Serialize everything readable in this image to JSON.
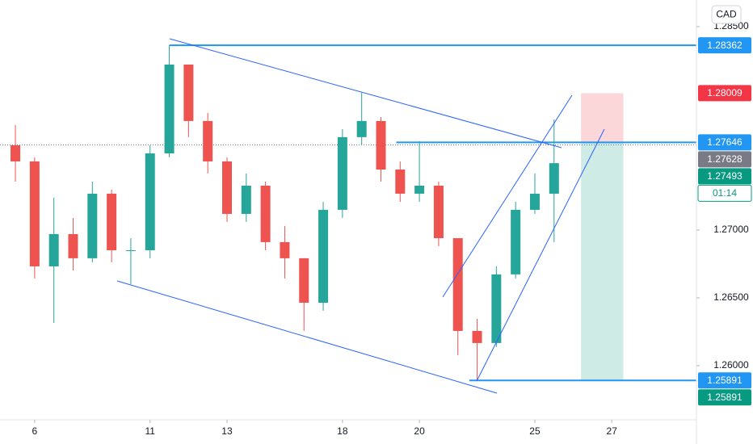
{
  "chart_data": {
    "type": "candlestick",
    "currency": "CAD",
    "x": [
      -0.5,
      0,
      0.5,
      1,
      1.5,
      2,
      2.5,
      3,
      3.5,
      4,
      4.5,
      5,
      5.5,
      6,
      6.5,
      7,
      7.5,
      8,
      8.5,
      9,
      9.5,
      10,
      10.5,
      11,
      11.5,
      12,
      12.5,
      13,
      13.5
    ],
    "open": [
      1.27625,
      1.27506,
      1.26732,
      1.2697,
      1.26792,
      1.27268,
      1.26851,
      1.26851,
      1.27565,
      1.2822,
      1.27804,
      1.27506,
      1.27119,
      1.27327,
      1.26911,
      1.26792,
      1.26464,
      1.27149,
      1.27685,
      1.27804,
      1.27446,
      1.27268,
      1.27327,
      1.2694,
      1.26256,
      1.26167,
      1.26673,
      1.27149,
      1.27268
    ],
    "high": [
      1.27774,
      1.27536,
      1.27238,
      1.27089,
      1.27357,
      1.27298,
      1.2694,
      1.27625,
      1.28362,
      1.2822,
      1.27863,
      1.27536,
      1.27417,
      1.27357,
      1.2703,
      1.26792,
      1.27208,
      1.27744,
      1.28012,
      1.27833,
      1.27506,
      1.27655,
      1.27357,
      1.2694,
      1.26345,
      1.26732,
      1.27208,
      1.27417,
      1.27815
    ],
    "low": [
      1.27357,
      1.26643,
      1.26315,
      1.26702,
      1.26762,
      1.26762,
      1.26601,
      1.26792,
      1.27536,
      1.27685,
      1.27417,
      1.2706,
      1.2706,
      1.26851,
      1.26643,
      1.26256,
      1.26405,
      1.27089,
      1.27625,
      1.27357,
      1.27208,
      1.27208,
      1.26881,
      1.26077,
      1.25891,
      1.26137,
      1.26643,
      1.27119,
      1.26911
    ],
    "close": [
      1.27506,
      1.26732,
      1.2697,
      1.26792,
      1.27268,
      1.26851,
      1.26851,
      1.27565,
      1.2822,
      1.27804,
      1.27506,
      1.27119,
      1.27327,
      1.26911,
      1.26792,
      1.26464,
      1.27149,
      1.27685,
      1.27804,
      1.27446,
      1.27268,
      1.27327,
      1.2694,
      1.26256,
      1.26167,
      1.26673,
      1.27149,
      1.27268,
      1.27493
    ],
    "up_color": "#26a69a",
    "down_color": "#ef5350",
    "xlim": [
      -0.9,
      17.2
    ],
    "xticks": [
      {
        "value": 0,
        "label": "6"
      },
      {
        "value": 3,
        "label": "11"
      },
      {
        "value": 5,
        "label": "13"
      },
      {
        "value": 8,
        "label": "18"
      },
      {
        "value": 10,
        "label": "20"
      },
      {
        "value": 13,
        "label": "25"
      },
      {
        "value": 15,
        "label": "27"
      }
    ],
    "ylim": [
      1.25601,
      1.28696
    ],
    "yticks": [
      {
        "value": 1.285,
        "label": "1.28500"
      },
      {
        "value": 1.27,
        "label": "1.27000"
      },
      {
        "value": 1.265,
        "label": "1.26500"
      },
      {
        "value": 1.26,
        "label": "1.26000"
      }
    ],
    "price_labels": [
      {
        "value": 1.28362,
        "label": "1.28362",
        "color": "#2196f3",
        "line": "solid",
        "from": 3.5
      },
      {
        "value": 1.28009,
        "label": "1.28009",
        "color": "#f23645",
        "role": "stop"
      },
      {
        "value": 1.27646,
        "label": "1.27646",
        "color": "#2196f3",
        "line": "solid",
        "from": 9.4,
        "role": "entry"
      },
      {
        "value": 1.27628,
        "label": "1.27628",
        "color": "#787b86",
        "line": "dotted"
      },
      {
        "value": 1.27493,
        "label": "1.27493",
        "color": "#089981"
      },
      {
        "label": "01:14",
        "color": "#089981"
      },
      {
        "value": 1.25891,
        "label": "1.25891",
        "color": "#2196f3",
        "line": "solid",
        "from": 11.3,
        "role": "target"
      },
      {
        "value": 1.25891,
        "label": "1.25891",
        "color": "#089981"
      }
    ],
    "trade_box_x": [
      14.2,
      15.3
    ]
  }
}
